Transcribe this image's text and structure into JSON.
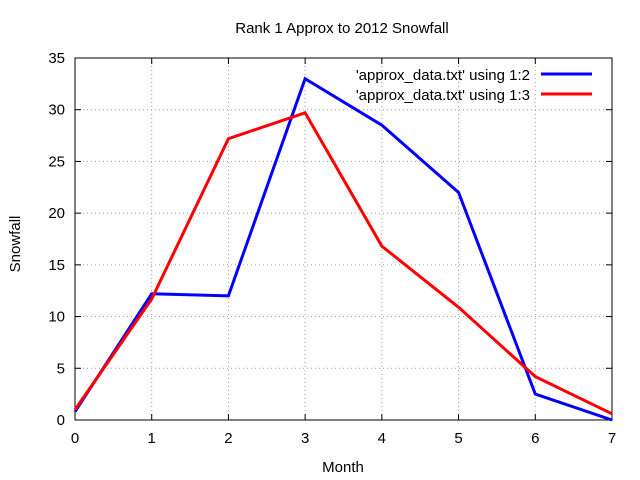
{
  "chart_data": {
    "type": "line",
    "title": "Rank 1 Approx to 2012 Snowfall",
    "xlabel": "Month",
    "ylabel": "Snowfall",
    "xlim": [
      0,
      7
    ],
    "ylim": [
      0,
      35
    ],
    "x_ticks": [
      0,
      1,
      2,
      3,
      4,
      5,
      6,
      7
    ],
    "y_ticks": [
      0,
      5,
      10,
      15,
      20,
      25,
      30,
      35
    ],
    "grid": true,
    "legend_position": "top-right",
    "x": [
      0,
      1,
      2,
      3,
      4,
      5,
      6,
      7
    ],
    "series": [
      {
        "name": "'approx_data.txt' using 1:2",
        "color": "#0000ff",
        "values": [
          0.8,
          12.2,
          12.0,
          33.0,
          28.5,
          22.0,
          2.5,
          0.0
        ]
      },
      {
        "name": "'approx_data.txt' using 1:3",
        "color": "#ff0000",
        "values": [
          1.0,
          11.7,
          27.2,
          29.7,
          16.8,
          10.9,
          4.2,
          0.6
        ]
      }
    ]
  }
}
